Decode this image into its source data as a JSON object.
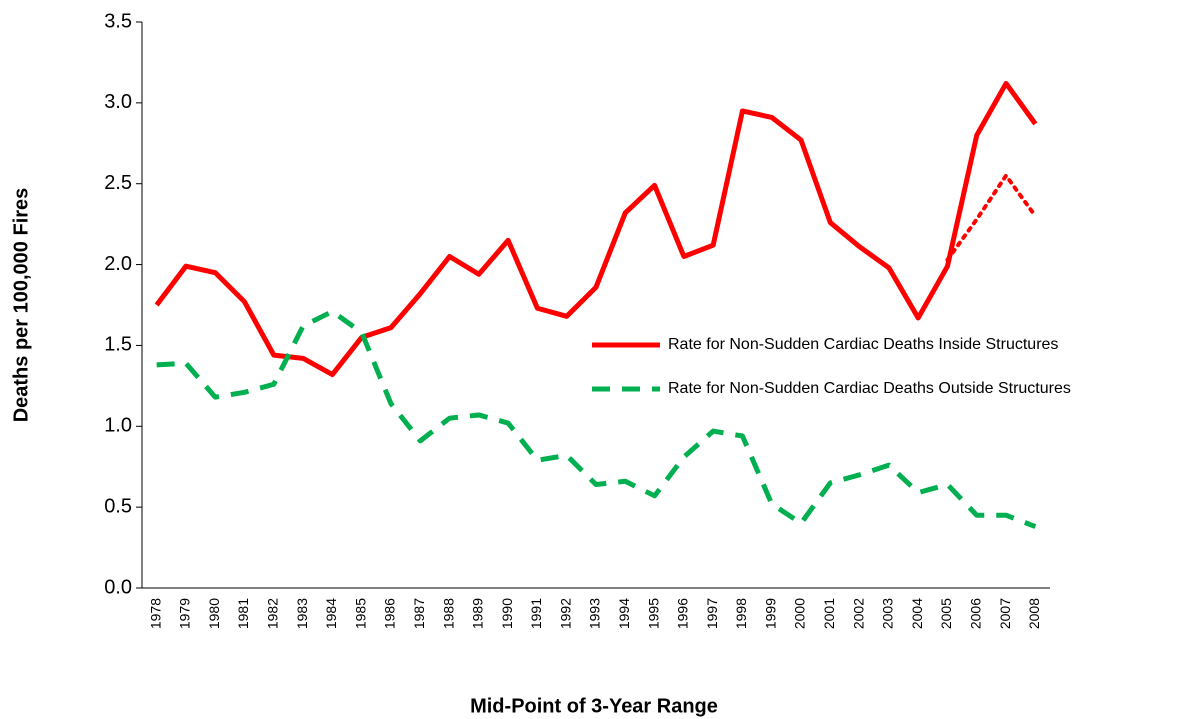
{
  "chart_data": {
    "type": "line",
    "x_label": "Mid-Point of 3-Year Range",
    "y_label": "Deaths per 100,000 Fires",
    "categories": [
      "1978",
      "1979",
      "1980",
      "1981",
      "1982",
      "1983",
      "1984",
      "1985",
      "1986",
      "1987",
      "1988",
      "1989",
      "1990",
      "1991",
      "1992",
      "1993",
      "1994",
      "1995",
      "1996",
      "1997",
      "1998",
      "1999",
      "2000",
      "2001",
      "2002",
      "2003",
      "2004",
      "2005",
      "2006",
      "2007",
      "2008"
    ],
    "series": [
      {
        "name": "Rate for Non-Sudden Cardiac Deaths Inside Structures",
        "color": "#ff0000",
        "dash": "solid",
        "values": [
          1.75,
          1.99,
          1.95,
          1.77,
          1.44,
          1.42,
          1.32,
          1.55,
          1.61,
          1.82,
          2.05,
          1.94,
          2.15,
          1.73,
          1.68,
          1.86,
          2.32,
          2.49,
          2.05,
          2.12,
          2.95,
          2.91,
          2.77,
          2.26,
          2.11,
          1.98,
          1.67,
          1.99,
          2.8,
          3.12,
          2.87
        ]
      },
      {
        "name": "Rate for Non-Sudden Cardiac Deaths Outside Structures",
        "color": "#00b050",
        "dash": "dashed",
        "values": [
          1.38,
          1.39,
          1.18,
          1.21,
          1.26,
          1.62,
          1.71,
          1.58,
          1.14,
          0.91,
          1.05,
          1.07,
          1.02,
          0.79,
          0.82,
          0.64,
          0.66,
          0.57,
          0.81,
          0.97,
          0.94,
          0.52,
          0.4,
          0.65,
          0.7,
          0.76,
          0.59,
          0.64,
          0.45,
          0.45,
          0.38
        ]
      },
      {
        "color": "#ff0000",
        "dash": "dotted",
        "values": [
          null,
          null,
          null,
          null,
          null,
          null,
          null,
          null,
          null,
          null,
          null,
          null,
          null,
          null,
          null,
          null,
          null,
          null,
          null,
          null,
          null,
          null,
          null,
          null,
          null,
          null,
          null,
          2.03,
          2.28,
          2.55,
          2.3
        ]
      }
    ],
    "ylim": [
      0,
      3.5
    ],
    "yticks": [
      {
        "value": 0,
        "label": "0.0"
      },
      0.5,
      {
        "value": 1,
        "label": "1.0"
      },
      1.5,
      {
        "value": 2,
        "label": "2.0"
      },
      2.5,
      {
        "value": 3,
        "label": "3.0"
      },
      3.5
    ],
    "grid": false,
    "legend": "right"
  }
}
